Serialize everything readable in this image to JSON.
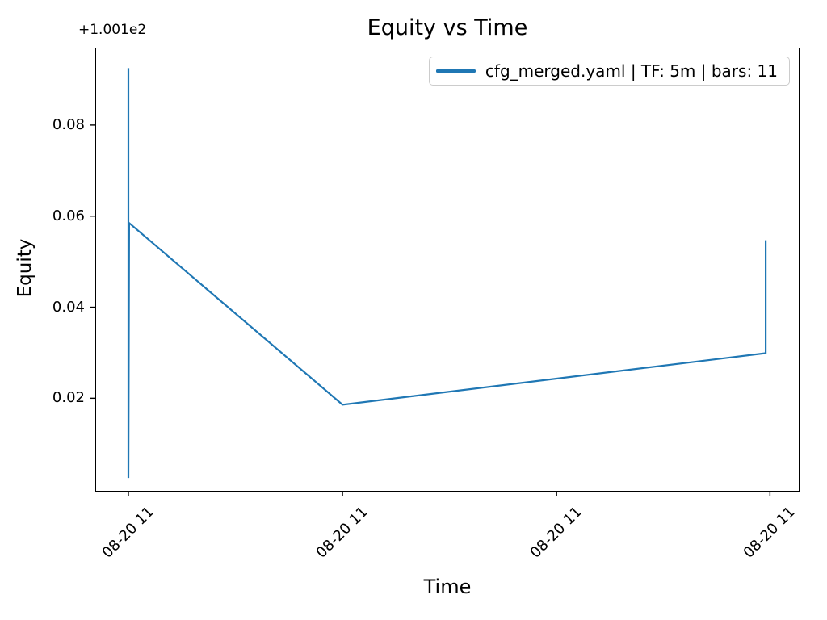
{
  "chart_data": {
    "type": "line",
    "title": "Equity vs Time",
    "xlabel": "Time",
    "ylabel": "Equity",
    "y_axis_offset_text": "+1.001e2",
    "y_axis_offset_value": 100.1,
    "grid": false,
    "line_color": "#1f77b4",
    "line_width": 2.2,
    "legend": {
      "position": "upper right",
      "entries": [
        {
          "label": "cfg_merged.yaml | TF: 5m | bars: 11",
          "color": "#1f77b4"
        }
      ]
    },
    "timeframe": "5m",
    "bars": 11,
    "xlim": [
      0,
      1
    ],
    "ylim": [
      -0.0005,
      0.097
    ],
    "x_ticks": [
      {
        "pos": 0.047,
        "label": "08-20 11"
      },
      {
        "pos": 0.351,
        "label": "08-20 11"
      },
      {
        "pos": 0.655,
        "label": "08-20 11"
      },
      {
        "pos": 0.958,
        "label": "08-20 11"
      }
    ],
    "y_ticks": [
      {
        "value": 0.02,
        "label": "0.02"
      },
      {
        "value": 0.04,
        "label": "0.04"
      },
      {
        "value": 0.06,
        "label": "0.06"
      },
      {
        "value": 0.08,
        "label": "0.08"
      }
    ],
    "series": [
      {
        "name": "cfg_merged.yaml | TF: 5m | bars: 11",
        "x": [
          0.047,
          0.047,
          0.048,
          0.351,
          0.952,
          0.952
        ],
        "y": [
          0.0925,
          0.0025,
          0.0585,
          0.0186,
          0.0299,
          0.0547
        ]
      }
    ]
  }
}
